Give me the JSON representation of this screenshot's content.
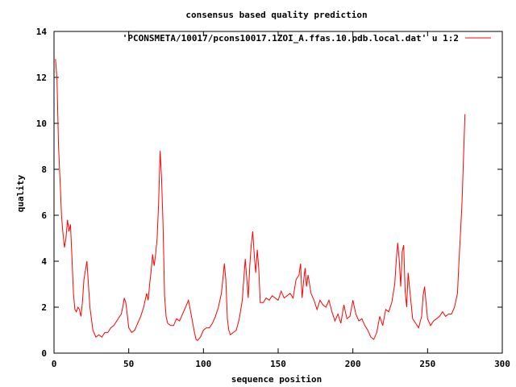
{
  "chart_data": {
    "type": "line",
    "title": "consensus based quality prediction",
    "xlabel": "sequence position",
    "ylabel": "quality",
    "xlim": [
      0,
      300
    ],
    "ylim": [
      0,
      14
    ],
    "xticks": [
      0,
      50,
      100,
      150,
      200,
      250,
      300
    ],
    "yticks": [
      0,
      2,
      4,
      6,
      8,
      10,
      12,
      14
    ],
    "grid": false,
    "legend_position": "top-right",
    "series": [
      {
        "name": "'PCONSMETA/10017/pcons10017.1ZOI_A.ffas.10.pdb.local.dat' u 1:2",
        "color": "#ff0000",
        "x": [
          1,
          2,
          3,
          4,
          5,
          6,
          7,
          8,
          9,
          10,
          11,
          12,
          13,
          14,
          15,
          16,
          17,
          18,
          19,
          20,
          22,
          24,
          26,
          28,
          30,
          32,
          34,
          36,
          38,
          40,
          42,
          44,
          45,
          46,
          47,
          48,
          49,
          50,
          52,
          54,
          56,
          58,
          60,
          62,
          63,
          64,
          65,
          66,
          67,
          68,
          69,
          70,
          71,
          72,
          73,
          74,
          75,
          76,
          78,
          80,
          82,
          84,
          86,
          88,
          90,
          92,
          94,
          95,
          96,
          98,
          100,
          102,
          104,
          106,
          108,
          110,
          112,
          114,
          115,
          116,
          117,
          118,
          120,
          122,
          124,
          126,
          128,
          130,
          131,
          132,
          133,
          134,
          135,
          136,
          137,
          138,
          140,
          142,
          144,
          146,
          148,
          150,
          152,
          154,
          156,
          158,
          160,
          162,
          164,
          165,
          166,
          167,
          168,
          169,
          170,
          172,
          174,
          176,
          178,
          180,
          182,
          184,
          186,
          188,
          190,
          192,
          194,
          196,
          198,
          200,
          202,
          204,
          206,
          208,
          210,
          212,
          214,
          216,
          218,
          220,
          222,
          224,
          226,
          228,
          229,
          230,
          231,
          232,
          233,
          234,
          235,
          236,
          237,
          238,
          240,
          242,
          244,
          246,
          247,
          248,
          250,
          252,
          254,
          256,
          258,
          260,
          262,
          264,
          266,
          268,
          270,
          271,
          272,
          273,
          274,
          275
        ],
        "y": [
          12.8,
          11.9,
          9.0,
          7.6,
          6.0,
          5.2,
          4.6,
          5.0,
          5.8,
          5.3,
          5.6,
          4.2,
          2.6,
          1.9,
          1.8,
          2.0,
          1.9,
          1.6,
          2.2,
          3.2,
          4.0,
          2.0,
          1.0,
          0.7,
          0.8,
          0.7,
          0.9,
          0.9,
          1.1,
          1.2,
          1.4,
          1.6,
          1.7,
          2.0,
          2.4,
          2.2,
          1.7,
          1.1,
          0.9,
          1.0,
          1.3,
          1.6,
          2.0,
          2.6,
          2.3,
          3.0,
          3.6,
          4.3,
          3.8,
          4.3,
          5.0,
          6.5,
          8.8,
          7.6,
          5.5,
          2.5,
          1.6,
          1.3,
          1.2,
          1.2,
          1.5,
          1.4,
          1.7,
          2.0,
          2.3,
          1.6,
          0.9,
          0.6,
          0.55,
          0.7,
          1.0,
          1.1,
          1.1,
          1.3,
          1.6,
          2.0,
          2.6,
          3.9,
          3.2,
          1.5,
          1.0,
          0.8,
          0.9,
          1.0,
          1.5,
          2.3,
          4.1,
          2.4,
          3.8,
          4.7,
          5.3,
          4.3,
          3.5,
          4.5,
          3.7,
          2.2,
          2.2,
          2.4,
          2.3,
          2.5,
          2.4,
          2.3,
          2.7,
          2.4,
          2.5,
          2.6,
          2.4,
          3.2,
          3.4,
          3.9,
          2.4,
          3.1,
          3.7,
          2.9,
          3.4,
          2.6,
          2.3,
          1.9,
          2.3,
          2.1,
          2.0,
          2.3,
          1.8,
          1.4,
          1.7,
          1.3,
          2.1,
          1.5,
          1.6,
          2.3,
          1.7,
          1.4,
          1.5,
          1.2,
          1.0,
          0.7,
          0.6,
          0.9,
          1.6,
          1.2,
          1.9,
          1.8,
          2.2,
          3.0,
          4.0,
          4.8,
          4.1,
          2.9,
          4.4,
          4.7,
          2.7,
          2.0,
          3.5,
          2.8,
          1.5,
          1.3,
          1.1,
          1.6,
          2.5,
          2.9,
          1.5,
          1.2,
          1.4,
          1.5,
          1.6,
          1.8,
          1.6,
          1.7,
          1.7,
          2.0,
          2.6,
          4.0,
          5.2,
          6.5,
          8.4,
          10.4
        ]
      }
    ]
  }
}
